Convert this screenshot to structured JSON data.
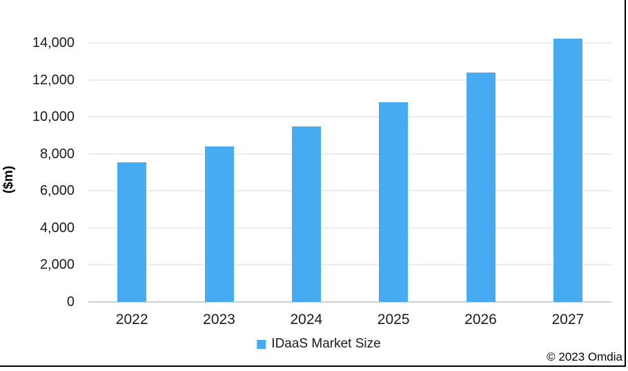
{
  "chart_data": {
    "type": "bar",
    "title": "",
    "categories": [
      "2022",
      "2023",
      "2024",
      "2025",
      "2026",
      "2027"
    ],
    "series": [
      {
        "name": "IDaaS Market Size",
        "values": [
          7550,
          8390,
          9470,
          10780,
          12380,
          14220
        ]
      }
    ],
    "xlabel": "",
    "ylabel": "($m)",
    "ylim": [
      0,
      14000
    ],
    "ytick_interval": 2000,
    "ytick_labels": [
      "0",
      "2,000",
      "4,000",
      "6,000",
      "8,000",
      "10,000",
      "12,000",
      "14,000"
    ],
    "grid": "horizontal",
    "legend": {
      "position": "bottom-center",
      "entries": [
        "IDaaS Market Size"
      ]
    },
    "colors": {
      "bar": "#47ABF2",
      "gridline": "#ECECEC",
      "axis_line": "#CFCFCF",
      "text": "#1A1A1A",
      "frame": "#000000"
    }
  },
  "footer": {
    "copyright": "© 2023 Omdia"
  }
}
